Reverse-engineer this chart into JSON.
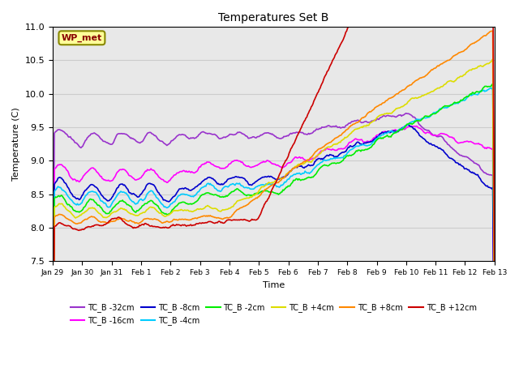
{
  "title": "Temperatures Set B",
  "xlabel": "Time",
  "ylabel": "Temperature (C)",
  "ylim": [
    7.5,
    11.0
  ],
  "series_order": [
    "TC_B -32cm",
    "TC_B -16cm",
    "TC_B -8cm",
    "TC_B -4cm",
    "TC_B -2cm",
    "TC_B +4cm",
    "TC_B +8cm",
    "TC_B +12cm"
  ],
  "colors": {
    "TC_B -32cm": "#9933CC",
    "TC_B -16cm": "#FF00FF",
    "TC_B -8cm": "#0000CC",
    "TC_B -4cm": "#00CCFF",
    "TC_B -2cm": "#00EE00",
    "TC_B +4cm": "#DDDD00",
    "TC_B +8cm": "#FF8800",
    "TC_B +12cm": "#CC0000"
  },
  "annotation": {
    "text": "WP_met",
    "bbox_facecolor": "#FFFF99",
    "bbox_edgecolor": "#888800"
  },
  "xtick_labels": [
    "Jan 29",
    "Jan 30",
    "Jan 31",
    "Feb 1",
    "Feb 2",
    "Feb 3",
    "Feb 4",
    "Feb 5",
    "Feb 6",
    "Feb 7",
    "Feb 8",
    "Feb 9",
    "Feb 10",
    "Feb 11",
    "Feb 12",
    "Feb 13"
  ],
  "grid_color": "#CCCCCC",
  "bg_color": "#E8E8E8",
  "fig_width": 6.4,
  "fig_height": 4.8,
  "dpi": 100
}
